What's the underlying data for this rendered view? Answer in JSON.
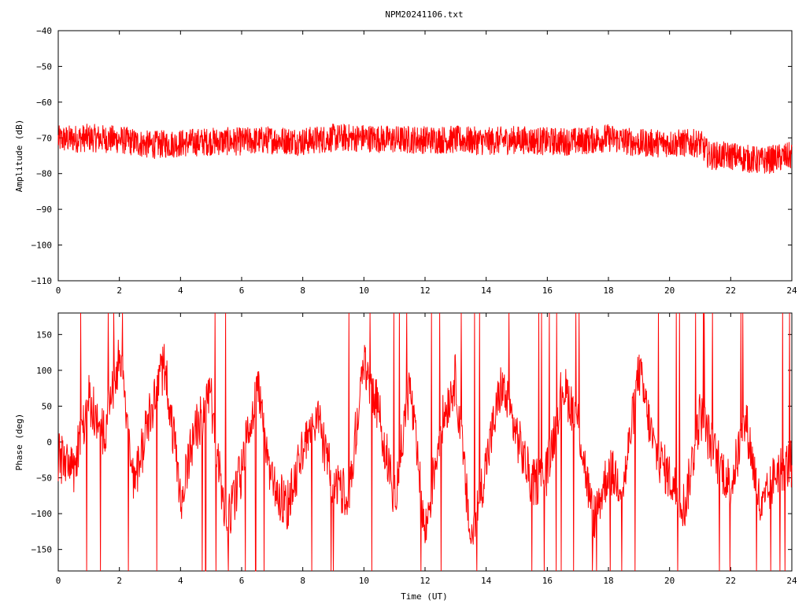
{
  "title": "NPM20241106.txt",
  "chart_data": [
    {
      "type": "line",
      "ylabel": "Amplitude (dB)",
      "xlabel": "",
      "xlim": [
        0,
        24
      ],
      "ylim": [
        -110,
        -40
      ],
      "xticks": [
        "0",
        "2",
        "4",
        "6",
        "8",
        "10",
        "12",
        "14",
        "16",
        "18",
        "20",
        "22",
        "24"
      ],
      "yticks": [
        "-40",
        "-50",
        "-60",
        "-70",
        "-80",
        "-90",
        "-100",
        "-110"
      ],
      "series": [
        {
          "color": "#ff0000",
          "x": [
            0,
            1,
            2,
            3,
            4,
            5,
            6,
            7,
            8,
            9,
            10,
            11,
            12,
            13,
            14,
            15,
            16,
            17,
            18,
            19,
            20,
            21,
            21.3,
            22,
            23,
            24
          ],
          "y": [
            -70.5,
            -70,
            -70.5,
            -72,
            -71.5,
            -71,
            -71,
            -70.5,
            -71,
            -70,
            -70,
            -70.5,
            -70.5,
            -70.5,
            -71,
            -70.5,
            -71,
            -71,
            -70,
            -71.5,
            -71.5,
            -71.5,
            -75,
            -75,
            -76.5,
            -75
          ]
        }
      ]
    },
    {
      "type": "line",
      "ylabel": "Phase (deg)",
      "xlabel": "Time (UT)",
      "xlim": [
        0,
        24
      ],
      "ylim": [
        -180,
        180
      ],
      "xticks": [
        "0",
        "2",
        "4",
        "6",
        "8",
        "10",
        "12",
        "14",
        "16",
        "18",
        "20",
        "22",
        "24"
      ],
      "yticks": [
        "150",
        "100",
        "50",
        "0",
        "-50",
        "-100",
        "-150"
      ],
      "series": [
        {
          "color": "#ff0000",
          "x": [
            0,
            0.5,
            1,
            1.5,
            2,
            2.5,
            3,
            3.5,
            4,
            4.5,
            5,
            5.5,
            6,
            6.5,
            7,
            7.5,
            8,
            8.5,
            9,
            9.5,
            10,
            10.5,
            11,
            11.5,
            12,
            12.5,
            13,
            13.5,
            14,
            14.5,
            15,
            15.5,
            16,
            16.5,
            17,
            17.5,
            18,
            18.5,
            19,
            19.5,
            20,
            20.5,
            21,
            21.5,
            22,
            22.5,
            23,
            23.5,
            24
          ],
          "y": [
            -20,
            -40,
            60,
            10,
            120,
            -60,
            40,
            110,
            -80,
            20,
            60,
            -120,
            -40,
            80,
            -60,
            -90,
            -10,
            30,
            -60,
            -70,
            110,
            40,
            -80,
            80,
            -130,
            20,
            90,
            -140,
            -30,
            80,
            10,
            -60,
            -40,
            80,
            30,
            -110,
            -40,
            -60,
            100,
            -10,
            -50,
            -90,
            40,
            -20,
            -60,
            30,
            -100,
            -40,
            -30
          ]
        }
      ]
    }
  ]
}
